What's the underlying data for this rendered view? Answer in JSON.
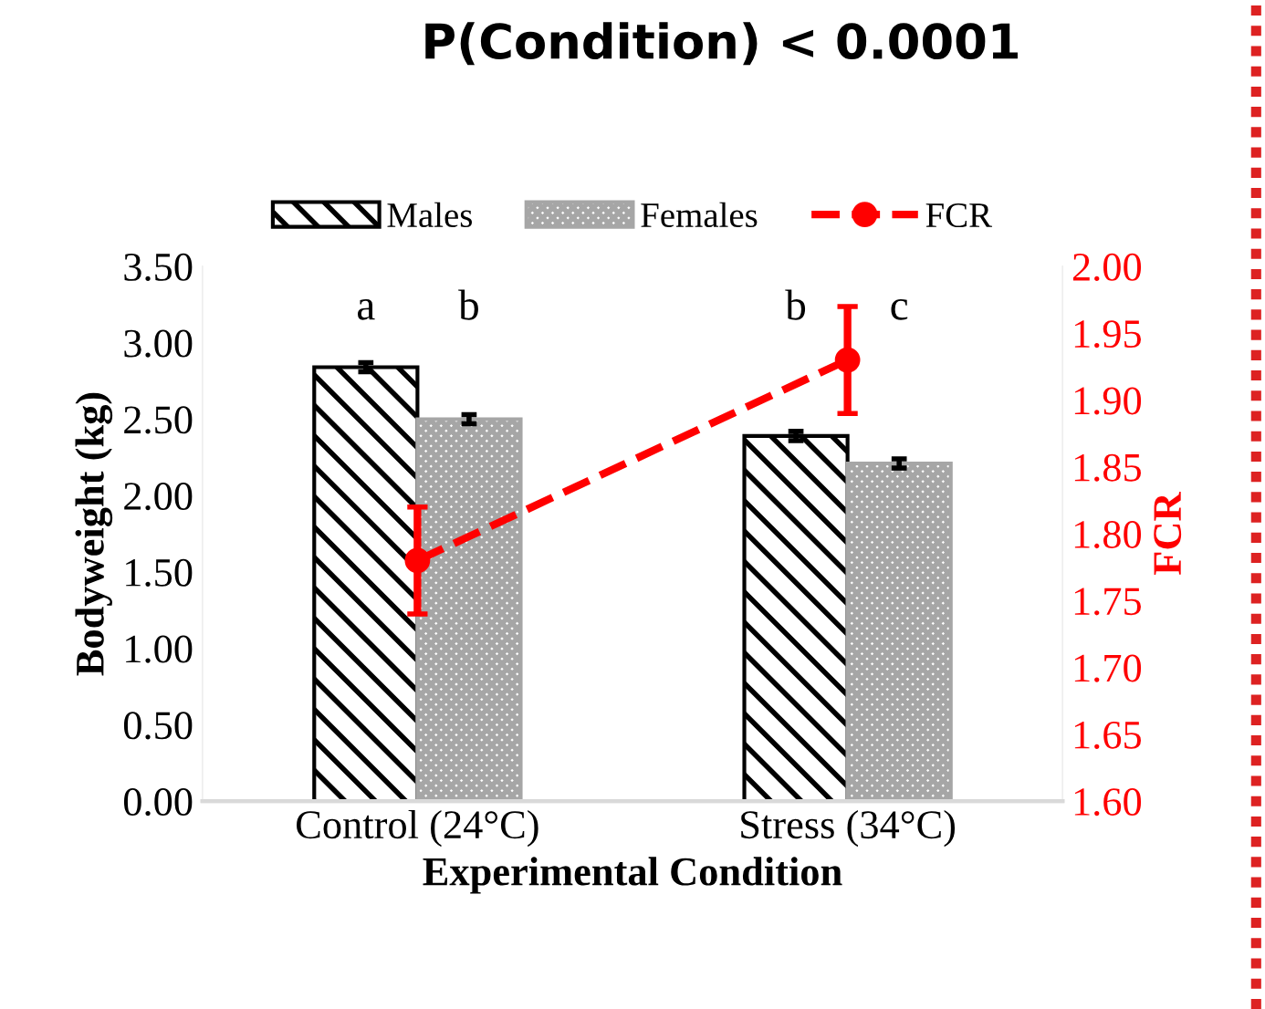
{
  "chart_data": {
    "type": "bar",
    "title": "P(Condition) < 0.0001",
    "xlabel": "Experimental Condition",
    "ylabel": "Bodyweight (kg)",
    "y2label": "FCR",
    "categories": [
      "Control (24°C)",
      "Stress (34°C)"
    ],
    "series": [
      {
        "name": "Males",
        "color": "#000000",
        "values": [
          2.84,
          2.39
        ],
        "errors": [
          0.03,
          0.03
        ]
      },
      {
        "name": "Females",
        "color": "#a6a6a6",
        "values": [
          2.5,
          2.21
        ],
        "errors": [
          0.03,
          0.03
        ]
      },
      {
        "name": "FCR",
        "type": "line",
        "axis": "y2",
        "color": "#ff0000",
        "values": [
          1.78,
          1.93
        ],
        "errors": [
          0.04,
          0.04
        ],
        "marker": "circle",
        "line_style": "dashed"
      }
    ],
    "ylim": [
      0,
      3.5
    ],
    "yticks": [
      {
        "value": 0,
        "label": "0.00"
      },
      {
        "value": 0.5,
        "label": "0.50"
      },
      {
        "value": 1,
        "label": "1.00"
      },
      {
        "value": 1.5,
        "label": "1.50"
      },
      {
        "value": 2,
        "label": "2.00"
      },
      {
        "value": 2.5,
        "label": "2.50"
      },
      {
        "value": 3,
        "label": "3.00"
      },
      {
        "value": 3.5,
        "label": "3.50"
      }
    ],
    "y2lim": [
      1.6,
      2.0
    ],
    "y2ticks": [
      {
        "value": 1.6,
        "label": "1.60"
      },
      {
        "value": 1.65,
        "label": "1.65"
      },
      {
        "value": 1.7,
        "label": "1.70"
      },
      {
        "value": 1.75,
        "label": "1.75"
      },
      {
        "value": 1.8,
        "label": "1.80"
      },
      {
        "value": 1.85,
        "label": "1.85"
      },
      {
        "value": 1.9,
        "label": "1.90"
      },
      {
        "value": 1.95,
        "label": "1.95"
      },
      {
        "value": 2.0,
        "label": "2.00"
      }
    ],
    "annotations": [
      "a",
      "b",
      "b",
      "c"
    ],
    "legend": "top",
    "grid": false
  }
}
